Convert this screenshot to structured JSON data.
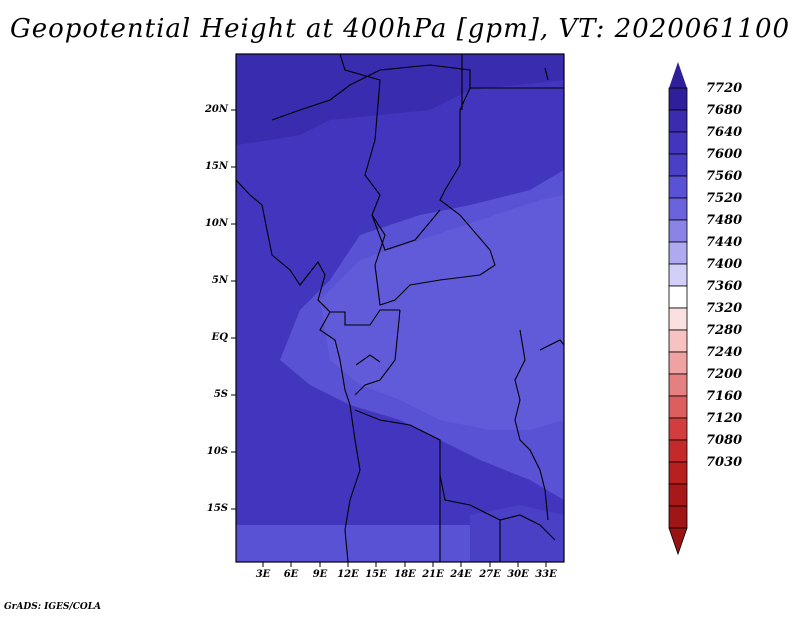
{
  "title": "Geopotential Height at 400hPa [gpm], VT: 2020061100",
  "footer": "GrADS: IGES/COLA",
  "lat_labels": [
    "20N",
    "15N",
    "10N",
    "5N",
    "EQ",
    "5S",
    "10S",
    "15S"
  ],
  "lon_labels": [
    "3E",
    "6E",
    "9E",
    "12E",
    "15E",
    "18E",
    "21E",
    "24E",
    "27E",
    "30E",
    "33E"
  ],
  "colorbar": {
    "labels": [
      "7720",
      "7680",
      "7640",
      "7600",
      "7560",
      "7520",
      "7480",
      "7440",
      "7400",
      "7360",
      "7320",
      "7280",
      "7240",
      "7200",
      "7160",
      "7120",
      "7080",
      "7030"
    ],
    "colors": [
      "#2f1f9a",
      "#3a2cae",
      "#4236be",
      "#4a40c6",
      "#5a52d4",
      "#6a63dc",
      "#8a84e6",
      "#aeaaf0",
      "#d2d0f8",
      "#ffffff",
      "#fbe0e0",
      "#f6c2c2",
      "#eea2a2",
      "#e58080",
      "#dc5e5e",
      "#d23e3e",
      "#c42a2a",
      "#b01e1e"
    ]
  },
  "map_colors": {
    "deep": "#3a2cae",
    "mid": "#4236be",
    "light": "#5a52d4",
    "lighter": "#6a63dc"
  }
}
